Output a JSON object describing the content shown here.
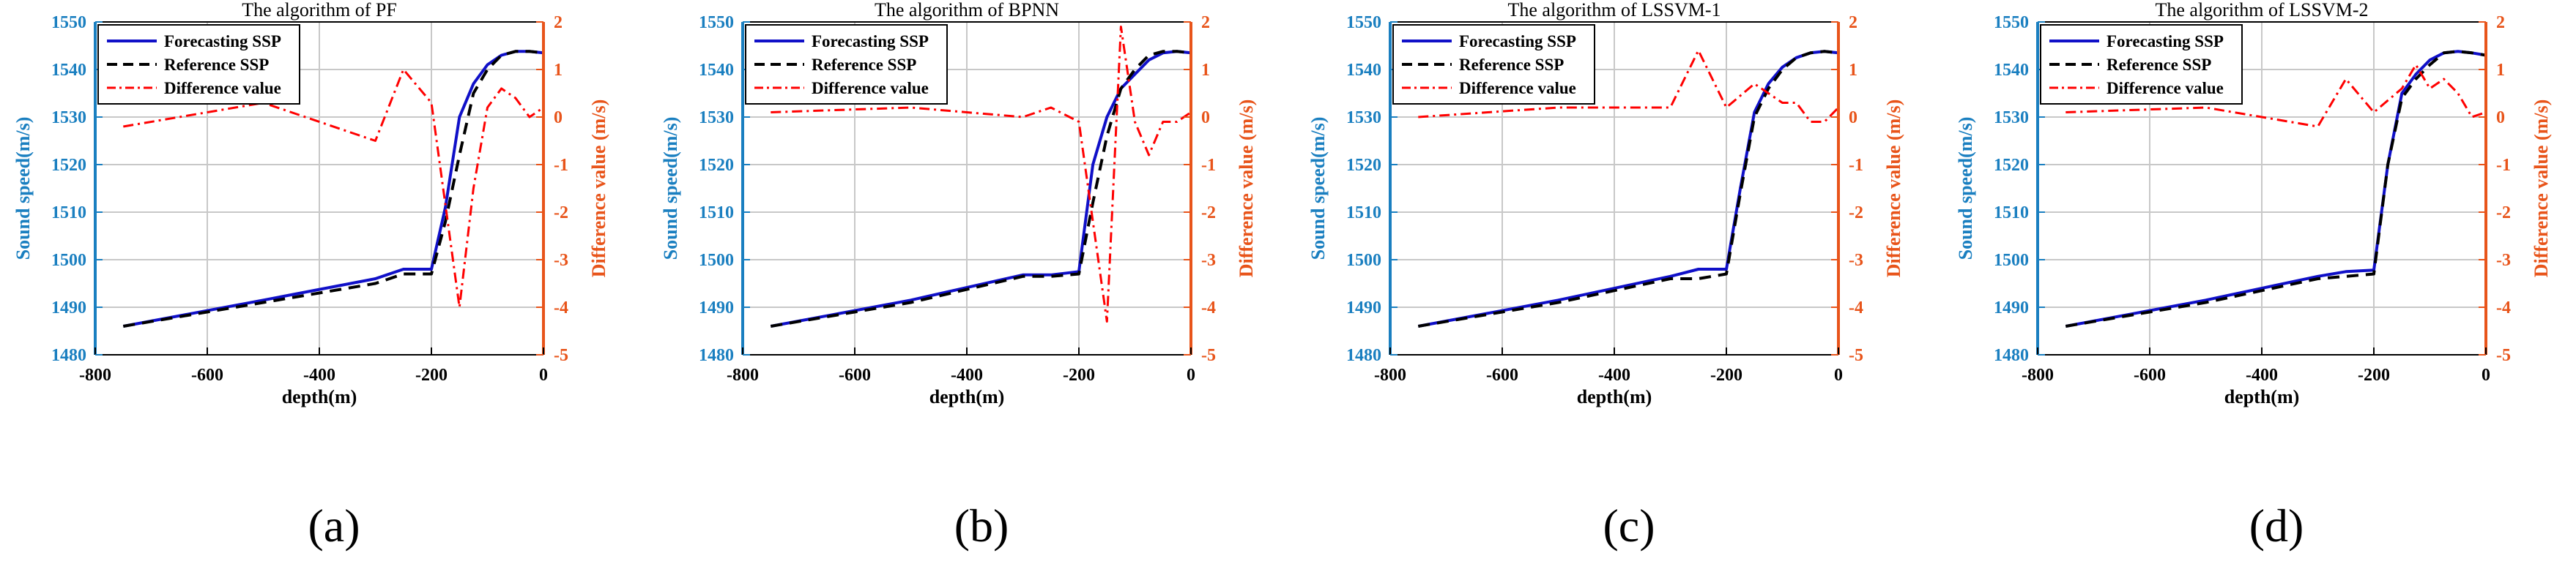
{
  "colors": {
    "forecast": "#1010c8",
    "reference": "#000000",
    "difference": "#ff0000",
    "left_axis": "#1a7fc0",
    "right_axis": "#e8541a",
    "grid": "#c8c8c8",
    "text": "#000000"
  },
  "chart_data": [
    {
      "type": "line",
      "panel_label": "(a)",
      "title": "The algorithm of PF",
      "xlabel": "depth(m)",
      "ylabel": "Sound speed(m/s)",
      "y2label": "Difference value (m/s)",
      "xlim": [
        -800,
        0
      ],
      "ylim": [
        1480,
        1550
      ],
      "y2lim": [
        -5,
        2
      ],
      "xticks": [
        -800,
        -600,
        -400,
        -200,
        0
      ],
      "yticks": [
        1480,
        1490,
        1500,
        1510,
        1520,
        1530,
        1540,
        1550
      ],
      "y2ticks": [
        -5,
        -4,
        -3,
        -2,
        -1,
        0,
        1,
        2
      ],
      "grid": true,
      "legend_position": "top-left",
      "series": [
        {
          "name": "Forecasting SSP",
          "axis": "left",
          "style": "solid",
          "x": [
            -750,
            -500,
            -300,
            -250,
            -200,
            -175,
            -150,
            -125,
            -100,
            -75,
            -50,
            -25,
            0
          ],
          "y": [
            1486,
            1491.5,
            1496,
            1498,
            1498,
            1511,
            1530,
            1537,
            1541,
            1543,
            1543.8,
            1543.8,
            1543.5
          ]
        },
        {
          "name": "Reference SSP",
          "axis": "left",
          "style": "dashed",
          "x": [
            -750,
            -500,
            -300,
            -250,
            -200,
            -175,
            -150,
            -125,
            -100,
            -75,
            -50,
            -25,
            0
          ],
          "y": [
            1486,
            1491,
            1495,
            1497,
            1497,
            1508,
            1522,
            1535,
            1540,
            1543,
            1543.8,
            1543.8,
            1543.5
          ]
        },
        {
          "name": "Difference value",
          "axis": "right",
          "style": "dashdot",
          "x": [
            -750,
            -500,
            -300,
            -250,
            -200,
            -150,
            -125,
            -100,
            -75,
            -50,
            -25,
            0
          ],
          "y": [
            -0.2,
            0.3,
            -0.5,
            1.0,
            0.3,
            -4.0,
            -1.5,
            0.2,
            0.6,
            0.4,
            0.0,
            0.2
          ]
        }
      ]
    },
    {
      "type": "line",
      "panel_label": "(b)",
      "title": "The algorithm of BPNN",
      "xlabel": "depth(m)",
      "ylabel": "Sound speed(m/s)",
      "y2label": "Difference value (m/s)",
      "xlim": [
        -800,
        0
      ],
      "ylim": [
        1480,
        1550
      ],
      "y2lim": [
        -5,
        2
      ],
      "xticks": [
        -800,
        -600,
        -400,
        -200,
        0
      ],
      "yticks": [
        1480,
        1490,
        1500,
        1510,
        1520,
        1530,
        1540,
        1550
      ],
      "y2ticks": [
        -5,
        -4,
        -3,
        -2,
        -1,
        0,
        1,
        2
      ],
      "grid": true,
      "legend_position": "top-left",
      "series": [
        {
          "name": "Forecasting SSP",
          "axis": "left",
          "style": "solid",
          "x": [
            -750,
            -500,
            -300,
            -250,
            -200,
            -175,
            -150,
            -125,
            -100,
            -75,
            -50,
            -25,
            0
          ],
          "y": [
            1486,
            1491.5,
            1496.8,
            1496.8,
            1497.5,
            1520,
            1530,
            1536,
            1539,
            1542,
            1543.5,
            1543.8,
            1543.5
          ]
        },
        {
          "name": "Reference SSP",
          "axis": "left",
          "style": "dashed",
          "x": [
            -750,
            -500,
            -300,
            -250,
            -200,
            -175,
            -150,
            -125,
            -100,
            -75,
            -50,
            -25,
            0
          ],
          "y": [
            1486,
            1491,
            1496.5,
            1496.5,
            1497,
            1512,
            1526,
            1536,
            1540,
            1543,
            1543.8,
            1543.8,
            1543.5
          ]
        },
        {
          "name": "Difference value",
          "axis": "right",
          "style": "dashdot",
          "x": [
            -750,
            -500,
            -300,
            -250,
            -200,
            -150,
            -125,
            -100,
            -75,
            -50,
            -25,
            0
          ],
          "y": [
            0.1,
            0.2,
            0.0,
            0.2,
            -0.1,
            -4.3,
            1.9,
            -0.1,
            -0.8,
            -0.1,
            -0.1,
            0.1
          ]
        }
      ]
    },
    {
      "type": "line",
      "panel_label": "(c)",
      "title": "The algorithm of LSSVM-1",
      "xlabel": "depth(m)",
      "ylabel": "Sound speed(m/s)",
      "y2label": "Difference value (m/s)",
      "xlim": [
        -800,
        0
      ],
      "ylim": [
        1480,
        1550
      ],
      "y2lim": [
        -5,
        2
      ],
      "xticks": [
        -800,
        -600,
        -400,
        -200,
        0
      ],
      "yticks": [
        1480,
        1490,
        1500,
        1510,
        1520,
        1530,
        1540,
        1550
      ],
      "y2ticks": [
        -5,
        -4,
        -3,
        -2,
        -1,
        0,
        1,
        2
      ],
      "grid": true,
      "legend_position": "top-left",
      "series": [
        {
          "name": "Forecasting SSP",
          "axis": "left",
          "style": "solid",
          "x": [
            -750,
            -500,
            -300,
            -250,
            -200,
            -175,
            -150,
            -125,
            -100,
            -75,
            -50,
            -25,
            0
          ],
          "y": [
            1486,
            1491.5,
            1496.5,
            1498,
            1498,
            1515,
            1531,
            1537,
            1540.5,
            1542.5,
            1543.5,
            1543.8,
            1543.5
          ]
        },
        {
          "name": "Reference SSP",
          "axis": "left",
          "style": "dashed",
          "x": [
            -750,
            -500,
            -300,
            -250,
            -200,
            -175,
            -150,
            -125,
            -100,
            -75,
            -50,
            -25,
            0
          ],
          "y": [
            1486,
            1491,
            1496,
            1496,
            1497,
            1514,
            1530,
            1536,
            1540,
            1542.5,
            1543.5,
            1543.8,
            1543.5
          ]
        },
        {
          "name": "Difference value",
          "axis": "right",
          "style": "dashdot",
          "x": [
            -750,
            -500,
            -300,
            -250,
            -200,
            -150,
            -125,
            -100,
            -75,
            -50,
            -25,
            0
          ],
          "y": [
            0.0,
            0.2,
            0.2,
            1.4,
            0.2,
            0.7,
            0.5,
            0.3,
            0.3,
            -0.1,
            -0.1,
            0.2
          ]
        }
      ]
    },
    {
      "type": "line",
      "panel_label": "(d)",
      "title": "The algorithm of LSSVM-2",
      "xlabel": "depth(m)",
      "ylabel": "Sound speed(m/s)",
      "y2label": "Difference value (m/s)",
      "xlim": [
        -800,
        0
      ],
      "ylim": [
        1480,
        1550
      ],
      "y2lim": [
        -5,
        2
      ],
      "xticks": [
        -800,
        -600,
        -400,
        -200,
        0
      ],
      "yticks": [
        1480,
        1490,
        1500,
        1510,
        1520,
        1530,
        1540,
        1550
      ],
      "y2ticks": [
        -5,
        -4,
        -3,
        -2,
        -1,
        0,
        1,
        2
      ],
      "grid": true,
      "legend_position": "top-left",
      "series": [
        {
          "name": "Forecasting SSP",
          "axis": "left",
          "style": "solid",
          "x": [
            -750,
            -500,
            -300,
            -250,
            -200,
            -175,
            -150,
            -125,
            -100,
            -75,
            -50,
            -25,
            0
          ],
          "y": [
            1486,
            1491.5,
            1496.5,
            1497.5,
            1497.8,
            1520,
            1535,
            1539,
            1542,
            1543.5,
            1543.8,
            1543.5,
            1543
          ]
        },
        {
          "name": "Reference SSP",
          "axis": "left",
          "style": "dashed",
          "x": [
            -750,
            -500,
            -300,
            -250,
            -200,
            -175,
            -150,
            -125,
            -100,
            -75,
            -50,
            -25,
            0
          ],
          "y": [
            1486,
            1491,
            1496,
            1496.5,
            1497,
            1520,
            1534,
            1538,
            1541,
            1543.5,
            1543.8,
            1543.5,
            1543
          ]
        },
        {
          "name": "Difference value",
          "axis": "right",
          "style": "dashdot",
          "x": [
            -750,
            -500,
            -300,
            -250,
            -200,
            -150,
            -125,
            -100,
            -75,
            -50,
            -25,
            0
          ],
          "y": [
            0.1,
            0.2,
            -0.2,
            0.8,
            0.1,
            0.6,
            1.1,
            0.6,
            0.8,
            0.5,
            0.0,
            0.1
          ]
        }
      ]
    }
  ]
}
